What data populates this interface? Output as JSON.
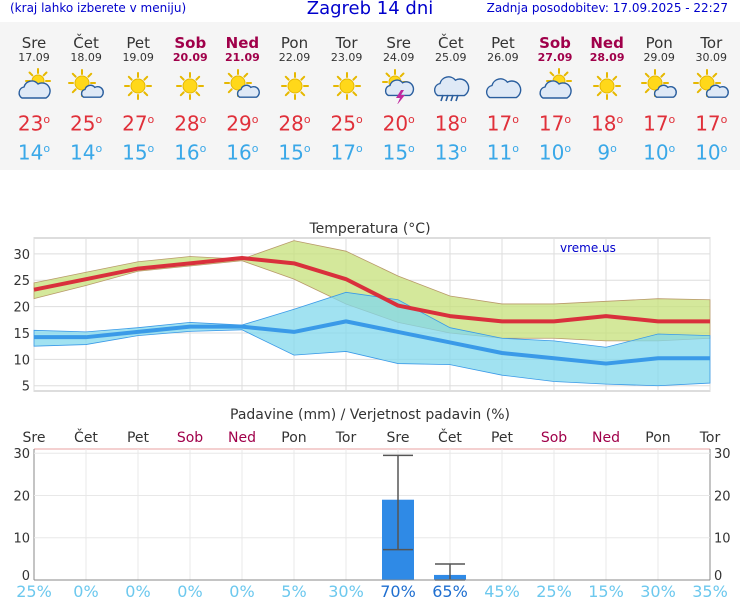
{
  "header": {
    "left_note": "(kraj lahko izberete v meniju)",
    "title": "Zagreb 14 dni",
    "updated": "Zadnja posodobitev: 17.09.2025 - 22:27"
  },
  "days": [
    {
      "name": "Sre",
      "date": "17.09",
      "weekend": false,
      "icon": "partly-cloudy-icon",
      "tmax": "23",
      "tmin": "14"
    },
    {
      "name": "Čet",
      "date": "18.09",
      "weekend": false,
      "icon": "sun-cloud-icon",
      "tmax": "25",
      "tmin": "14"
    },
    {
      "name": "Pet",
      "date": "19.09",
      "weekend": false,
      "icon": "sun-icon",
      "tmax": "27",
      "tmin": "15"
    },
    {
      "name": "Sob",
      "date": "20.09",
      "weekend": true,
      "icon": "sun-icon",
      "tmax": "28",
      "tmin": "16"
    },
    {
      "name": "Ned",
      "date": "21.09",
      "weekend": true,
      "icon": "sun-cloud-icon",
      "tmax": "29",
      "tmin": "16"
    },
    {
      "name": "Pon",
      "date": "22.09",
      "weekend": false,
      "icon": "sun-icon",
      "tmax": "28",
      "tmin": "15"
    },
    {
      "name": "Tor",
      "date": "23.09",
      "weekend": false,
      "icon": "sun-icon",
      "tmax": "25",
      "tmin": "17"
    },
    {
      "name": "Sre",
      "date": "24.09",
      "weekend": false,
      "icon": "thunderstorm-icon",
      "tmax": "20",
      "tmin": "15"
    },
    {
      "name": "Čet",
      "date": "25.09",
      "weekend": false,
      "icon": "rain-cloud-icon",
      "tmax": "18",
      "tmin": "13"
    },
    {
      "name": "Pet",
      "date": "26.09",
      "weekend": false,
      "icon": "cloud-icon",
      "tmax": "17",
      "tmin": "11"
    },
    {
      "name": "Sob",
      "date": "27.09",
      "weekend": true,
      "icon": "partly-cloudy-icon",
      "tmax": "17",
      "tmin": "10"
    },
    {
      "name": "Ned",
      "date": "28.09",
      "weekend": true,
      "icon": "sun-icon",
      "tmax": "18",
      "tmin": "9"
    },
    {
      "name": "Pon",
      "date": "29.09",
      "weekend": false,
      "icon": "sun-cloud-icon",
      "tmax": "17",
      "tmin": "10"
    },
    {
      "name": "Tor",
      "date": "30.09",
      "weekend": false,
      "icon": "sun-cloud-icon",
      "tmax": "17",
      "tmin": "10"
    }
  ],
  "chart_data": [
    {
      "type": "line",
      "title": "Temperatura (°C)",
      "watermark": "vreme.us",
      "ylim": [
        4,
        33
      ],
      "yticks": [
        5,
        10,
        15,
        20,
        25,
        30
      ],
      "grid": true,
      "series": [
        {
          "name": "",
          "color": "#d9303c",
          "values": [
            23.2,
            25.2,
            27.2,
            28.2,
            29.2,
            28.2,
            25.2,
            20.2,
            18.2,
            17.2,
            17.2,
            18.2,
            17.2,
            17.2
          ]
        },
        {
          "name": "",
          "color": "#3a9ae8",
          "values": [
            14.2,
            14.2,
            15.2,
            16.2,
            16.2,
            15.2,
            17.2,
            15.2,
            13.2,
            11.2,
            10.2,
            9.2,
            10.2,
            10.2
          ]
        }
      ],
      "bands": [
        {
          "color": "#c6e07a",
          "upper": [
            24.5,
            26.5,
            28.5,
            29.5,
            29,
            32.5,
            30.5,
            25.8,
            22,
            20.5,
            20.5,
            21,
            21.5,
            21.3
          ],
          "lower": [
            21.5,
            24,
            26.7,
            27.7,
            28.7,
            25.2,
            20.5,
            17,
            15,
            14,
            14,
            13.5,
            13.5,
            14
          ]
        },
        {
          "color": "#82d8ec",
          "upper": [
            15.5,
            15.2,
            16,
            17,
            16.5,
            19.5,
            22.7,
            21.3,
            16,
            14,
            13.5,
            12.3,
            14.8,
            14.5
          ],
          "lower": [
            12.5,
            12.8,
            14.5,
            15.3,
            15.6,
            10.8,
            11.5,
            9.2,
            9,
            7,
            5.8,
            5.3,
            5,
            5.5
          ]
        }
      ]
    },
    {
      "type": "bar",
      "title": "Padavine (mm) / Verjetnost padavin (%)",
      "ylim": [
        0,
        31
      ],
      "yticks": [
        0,
        10,
        20,
        30
      ],
      "categories": [
        "Sre",
        "Čet",
        "Pet",
        "Sob",
        "Ned",
        "Pon",
        "Tor",
        "Sre",
        "Čet",
        "Pet",
        "Sob",
        "Ned",
        "Pon",
        "Tor"
      ],
      "weekend": [
        false,
        false,
        false,
        true,
        true,
        false,
        false,
        false,
        false,
        false,
        true,
        true,
        false,
        false
      ],
      "values": [
        0,
        0,
        0,
        0,
        0,
        0,
        0,
        19,
        1.2,
        0,
        0,
        0,
        0,
        0
      ],
      "error_low": [
        null,
        null,
        null,
        null,
        null,
        null,
        null,
        7.2,
        0,
        null,
        null,
        null,
        null,
        null
      ],
      "error_high": [
        null,
        null,
        null,
        null,
        null,
        null,
        null,
        29.5,
        3.8,
        null,
        null,
        null,
        null,
        null
      ],
      "probability": [
        "25%",
        "0%",
        "0%",
        "0%",
        "0%",
        "5%",
        "30%",
        "70%",
        "65%",
        "45%",
        "25%",
        "15%",
        "30%",
        "35%"
      ],
      "prob_strong": [
        false,
        false,
        false,
        false,
        false,
        false,
        false,
        true,
        true,
        false,
        false,
        false,
        false,
        false
      ]
    }
  ]
}
